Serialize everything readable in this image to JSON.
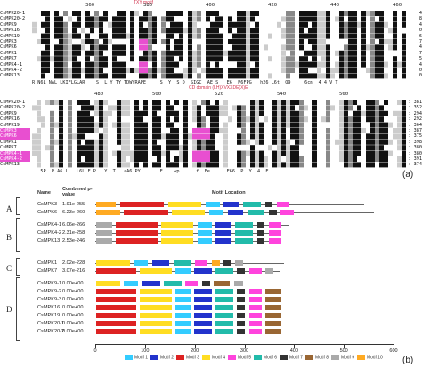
{
  "panels": {
    "a": "(a)",
    "b": "(b)"
  },
  "alignment": {
    "block1": {
      "ruler_ticks": [
        "360",
        "380",
        "400",
        "420",
        "440",
        "460"
      ],
      "names": [
        "CsMPK20-1",
        "CsMPK20-2",
        "CsMPK9",
        "CsMPK16",
        "CsMPK19",
        "CsMPK3",
        "CsMPK6",
        "CsMPK1",
        "CsMPK7",
        "CsMPK4-1",
        "CsMPK4-2",
        "CsMPK13"
      ],
      "ends": [
        "4",
        "8",
        "4",
        "0",
        "6",
        "7",
        "4",
        "7",
        "5",
        "4",
        "0",
        "0"
      ],
      "annotation_top": "TXY motif",
      "annotation_bottom": "CD domain (LH)XVXXDE(X)E",
      "consensus": "R N6L NAL LKIFLGLAR    S  L Y TY TDWYRAPE     S  Y  S D  SIGC  AE S   E6  P6FPG   h26 L6t  Q9     6cm  4 4 V T"
    },
    "block2": {
      "ruler_ticks": [
        "480",
        "500",
        "520",
        "540",
        "560"
      ],
      "names": [
        "CsMPK20-1",
        "CsMPK20-2",
        "CsMPK9",
        "CsMPK16",
        "CsMPK19",
        "CsMPK3",
        "CsMPK6",
        "CsMPK1",
        "CsMPK7",
        "CsMPK4-1",
        "CsMPK4-2",
        "CsMPK13"
      ],
      "pink_names": [
        "CsMPK3",
        "CsMPK6",
        "CsMPK4-1",
        "CsMPK4-2"
      ],
      "ends": [
        ": 381",
        ": 352",
        ": 294",
        ": 292",
        ": 364",
        ": 387",
        ": 375",
        ": 398",
        ": 380",
        ": 380",
        ": 391",
        ": 374"
      ],
      "consensus": "   5P  P A6 L   L6L F P   Y  T   aA6 PY       E    wp      f  Fe      E66  P  Y  4  E"
    }
  },
  "motif_chart": {
    "header": {
      "name": "Name",
      "pvalue": "Combined p-value",
      "location": "Motif Location"
    },
    "groups": [
      "A",
      "B",
      "C",
      "D"
    ],
    "axis_ticks": [
      "0",
      "100",
      "200",
      "300",
      "400",
      "500",
      "600"
    ],
    "legend": [
      "Motif 1",
      "Motif 2",
      "Motif 3",
      "Motif 4",
      "Motif 5",
      "Motif 6",
      "Motif 7",
      "Motif 8",
      "Motif 9",
      "Motif 10"
    ],
    "motif_colors": [
      "#33ccff",
      "#2233cc",
      "#dd2222",
      "#ffdd22",
      "#ff44dd",
      "#22bbaa",
      "#333333",
      "#996633",
      "#aaaaaa",
      "#ffaa22"
    ],
    "rows": [
      {
        "name": "CsMPK3",
        "pvalue": "1.91e-255"
      },
      {
        "name": "CsMPK6",
        "pvalue": "6.23e-260"
      },
      {
        "name": "CsMPK4-1",
        "pvalue": "6.06e-266"
      },
      {
        "name": "CsMPK4-2",
        "pvalue": "2.31e-258"
      },
      {
        "name": "CsMPK13",
        "pvalue": "2.53e-246"
      },
      {
        "name": "CsMPK1",
        "pvalue": "2.02e-228"
      },
      {
        "name": "CsMPK7",
        "pvalue": "3.07e-216"
      },
      {
        "name": "CsMPK9-1",
        "pvalue": "0.00e+00"
      },
      {
        "name": "CsMPK9-2",
        "pvalue": "0.00e+00"
      },
      {
        "name": "CsMPK9-3",
        "pvalue": "0.00e+00"
      },
      {
        "name": "CsMPK16",
        "pvalue": "0.00e+00"
      },
      {
        "name": "CsMPK19",
        "pvalue": "0.00e+00"
      },
      {
        "name": "CsMPK20-1",
        "pvalue": "0.00e+00"
      },
      {
        "name": "CsMPK20-2",
        "pvalue": "0.00e+00"
      }
    ]
  }
}
